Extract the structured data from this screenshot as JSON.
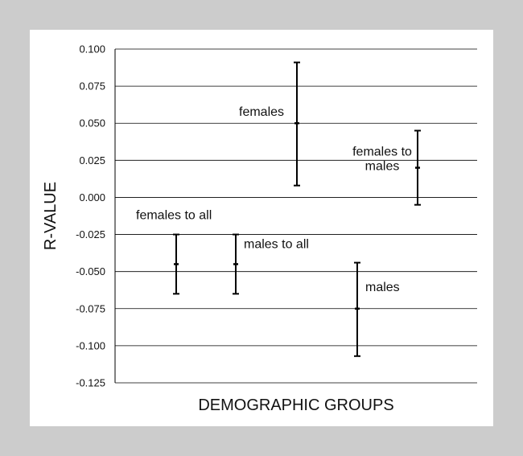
{
  "chart_data": {
    "type": "scatter",
    "title": "",
    "xlabel": "DEMOGRAPHIC GROUPS",
    "ylabel": "R-VALUE",
    "ylim": [
      -0.125,
      0.1
    ],
    "yticks": [
      "0.100",
      "0.075",
      "0.050",
      "0.025",
      "0.000",
      "-0.025",
      "-0.050",
      "-0.075",
      "-0.100",
      "-0.125"
    ],
    "ytick_values": [
      0.1,
      0.075,
      0.05,
      0.025,
      0.0,
      -0.025,
      -0.05,
      -0.075,
      -0.1,
      -0.125
    ],
    "grid": true,
    "points": [
      {
        "label": "females to all",
        "value": -0.045,
        "lower": -0.065,
        "upper": -0.025
      },
      {
        "label": "males to all",
        "value": -0.045,
        "lower": -0.065,
        "upper": -0.025
      },
      {
        "label": "females",
        "value": 0.05,
        "lower": 0.008,
        "upper": 0.091
      },
      {
        "label": "males",
        "value": -0.075,
        "lower": -0.107,
        "upper": -0.044
      },
      {
        "label": "females to males",
        "value": 0.02,
        "lower": -0.005,
        "upper": 0.045
      }
    ]
  }
}
